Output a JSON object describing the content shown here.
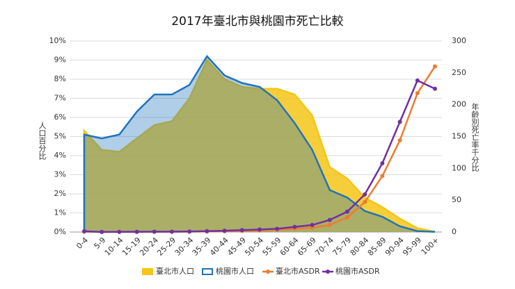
{
  "chart_data": {
    "type": "area",
    "title": "2017年臺北市與桃園市死亡比較",
    "y_label": "人口百分比",
    "y2_label": "年齡別死亡率千分比",
    "categories": [
      "0-4",
      "5-9",
      "10-14",
      "15-19",
      "20-24",
      "25-29",
      "30-34",
      "35-39",
      "40-44",
      "45-49",
      "50-54",
      "55-59",
      "60-64",
      "65-69",
      "70-74",
      "75-79",
      "80-84",
      "85-89",
      "90-94",
      "95-99",
      "100+"
    ],
    "ylim": [
      0,
      10
    ],
    "yticks": [
      {
        "value": 0,
        "label": "0%"
      },
      {
        "value": 1,
        "label": "1%"
      },
      {
        "value": 2,
        "label": "2%"
      },
      {
        "value": 3,
        "label": "3%"
      },
      {
        "value": 4,
        "label": "4%"
      },
      {
        "value": 5,
        "label": "5%"
      },
      {
        "value": 6,
        "label": "6%"
      },
      {
        "value": 7,
        "label": "7%"
      },
      {
        "value": 8,
        "label": "8%"
      },
      {
        "value": 9,
        "label": "9%"
      },
      {
        "value": 10,
        "label": "10%"
      }
    ],
    "y2lim": [
      0,
      300
    ],
    "y2ticks": [
      0,
      50,
      100,
      150,
      200,
      250,
      300
    ],
    "grid": true,
    "legend": "bottom",
    "series": [
      {
        "name": "臺北市人口",
        "type": "area",
        "color": "#f5c518",
        "values": [
          5.3,
          4.3,
          4.2,
          4.9,
          5.6,
          5.8,
          7.0,
          9.0,
          8.0,
          7.6,
          7.5,
          7.5,
          7.2,
          6.1,
          3.4,
          2.8,
          1.8,
          1.3,
          0.7,
          0.2,
          0.02
        ]
      },
      {
        "name": "桃園市人口",
        "type": "area",
        "color": "#1e73be",
        "values": [
          5.1,
          4.9,
          5.1,
          6.3,
          7.2,
          7.2,
          7.7,
          9.2,
          8.2,
          7.8,
          7.6,
          6.9,
          5.7,
          4.3,
          2.2,
          1.8,
          1.1,
          0.8,
          0.3,
          0.05,
          0.01
        ]
      },
      {
        "name": "臺北市ASDR",
        "type": "line",
        "axis": "y2",
        "color": "#ec7c30",
        "values": [
          0.5,
          0.1,
          0.1,
          0.2,
          0.3,
          0.4,
          0.5,
          0.8,
          1.2,
          1.8,
          2.5,
          3.5,
          5,
          7,
          11,
          23,
          47,
          88,
          144,
          218,
          260
        ]
      },
      {
        "name": "桃園市ASDR",
        "type": "line",
        "axis": "y2",
        "color": "#7030a0",
        "values": [
          1.2,
          0.2,
          0.3,
          0.4,
          0.5,
          0.6,
          0.8,
          1.3,
          2,
          3,
          4,
          5,
          8,
          11,
          19,
          32,
          59,
          108,
          173,
          238,
          225
        ]
      }
    ]
  }
}
